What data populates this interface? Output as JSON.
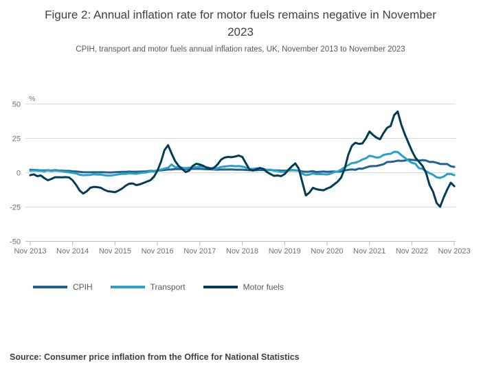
{
  "header": {
    "title": "Figure 2: Annual inflation rate for motor fuels remains negative in November 2023",
    "subtitle": "CPIH, transport and motor fuels annual inflation rates, UK, November 2013 to November 2023"
  },
  "chart_data": {
    "type": "line",
    "title": "Figure 2: Annual inflation rate for motor fuels remains negative in November 2023",
    "subtitle": "CPIH, transport and motor fuels annual inflation rates, UK, November 2013 to November 2023",
    "unit_label": "%",
    "x_frequency": "monthly",
    "x_start": "Nov 2013",
    "x_end": "Nov 2023",
    "x_tick_labels": [
      "Nov 2013",
      "Nov 2014",
      "Nov 2015",
      "Nov 2016",
      "Nov 2017",
      "Nov 2018",
      "Nov 2019",
      "Nov 2020",
      "Nov 2021",
      "Nov 2022",
      "Nov 2023"
    ],
    "y_ticks": [
      50,
      25,
      0,
      -25,
      -50
    ],
    "ylim": [
      -50,
      50
    ],
    "grid": "horizontal",
    "legend_position": "bottom-left",
    "colors": {
      "grid": "#d9d9d9",
      "axis": "#b7bcbf",
      "tick_text": "#707071"
    },
    "series": [
      {
        "name": "CPIH",
        "color": "#206095",
        "values": [
          2.1,
          2.0,
          1.8,
          1.7,
          1.6,
          1.8,
          1.5,
          1.9,
          1.6,
          1.5,
          1.3,
          1.3,
          1.0,
          0.9,
          0.6,
          0.4,
          0.3,
          0.3,
          0.4,
          0.3,
          0.4,
          0.3,
          0.2,
          0.2,
          0.4,
          0.5,
          0.6,
          0.6,
          0.8,
          0.7,
          0.7,
          0.8,
          0.9,
          1.0,
          1.3,
          1.2,
          1.5,
          1.7,
          2.0,
          2.3,
          2.3,
          2.6,
          2.7,
          2.6,
          2.6,
          2.7,
          2.8,
          2.8,
          2.8,
          2.7,
          2.5,
          2.5,
          2.3,
          2.2,
          2.3,
          2.3,
          2.3,
          2.4,
          2.2,
          2.2,
          2.2,
          2.0,
          1.8,
          1.8,
          1.8,
          2.0,
          1.9,
          1.9,
          2.0,
          1.7,
          1.7,
          1.5,
          1.5,
          1.4,
          1.8,
          1.7,
          1.5,
          0.9,
          0.7,
          0.8,
          1.1,
          0.5,
          0.7,
          0.9,
          0.6,
          0.8,
          0.9,
          0.7,
          1.0,
          1.6,
          2.1,
          2.4,
          2.1,
          3.0,
          2.9,
          3.8,
          4.6,
          4.8,
          4.9,
          5.5,
          6.2,
          7.8,
          7.9,
          8.2,
          8.8,
          8.6,
          8.8,
          9.6,
          9.3,
          9.2,
          8.8,
          9.2,
          8.9,
          7.8,
          7.9,
          7.3,
          6.4,
          6.3,
          6.3,
          4.7,
          4.2
        ]
      },
      {
        "name": "Transport",
        "color": "#27A0CC",
        "values": [
          1.5,
          1.6,
          1.4,
          1.3,
          1.0,
          1.7,
          1.2,
          1.5,
          1.3,
          1.0,
          0.6,
          0.3,
          -0.2,
          -0.5,
          -1.5,
          -1.8,
          -1.7,
          -1.6,
          -1.2,
          -1.4,
          -1.4,
          -1.8,
          -2.1,
          -2.0,
          -1.6,
          -1.2,
          -0.8,
          -0.9,
          -0.4,
          -0.6,
          -0.8,
          -0.3,
          0.0,
          0.2,
          1.0,
          0.9,
          1.7,
          2.3,
          3.1,
          3.6,
          6.0,
          4.0,
          4.2,
          3.6,
          3.3,
          3.7,
          4.0,
          4.0,
          4.5,
          4.4,
          4.0,
          3.3,
          2.7,
          3.3,
          4.2,
          4.5,
          4.8,
          5.0,
          4.7,
          4.8,
          4.5,
          3.7,
          2.6,
          2.8,
          3.1,
          3.3,
          2.7,
          2.1,
          2.2,
          1.4,
          1.2,
          0.6,
          0.8,
          1.4,
          2.0,
          1.8,
          1.2,
          -0.8,
          -1.7,
          -1.4,
          -0.5,
          -1.0,
          -1.0,
          -1.1,
          -1.3,
          -0.7,
          0.4,
          0.9,
          2.3,
          4.0,
          5.5,
          7.0,
          7.3,
          8.2,
          9.6,
          10.5,
          12.3,
          11.8,
          11.0,
          11.3,
          13.0,
          13.5,
          13.8,
          15.2,
          15.1,
          12.8,
          10.9,
          8.9,
          7.2,
          6.5,
          3.3,
          2.8,
          1.0,
          -0.3,
          -1.5,
          -3.3,
          -3.8,
          -2.8,
          -1.0,
          -0.9,
          -1.8
        ]
      },
      {
        "name": "Motor fuels",
        "color": "#003C57",
        "values": [
          -1.8,
          -1.2,
          -2.5,
          -2.0,
          -4.0,
          -5.5,
          -4.5,
          -3.3,
          -3.3,
          -3.4,
          -3.2,
          -3.5,
          -5.5,
          -9.0,
          -13.0,
          -15.2,
          -13.5,
          -11.0,
          -10.3,
          -10.5,
          -11.0,
          -12.5,
          -13.5,
          -13.8,
          -14.2,
          -13.0,
          -11.5,
          -9.5,
          -8.0,
          -7.8,
          -9.0,
          -8.5,
          -7.5,
          -6.5,
          -5.5,
          -3.0,
          1.5,
          8.0,
          16.5,
          20.0,
          14.0,
          8.5,
          5.0,
          2.7,
          0.5,
          1.5,
          5.0,
          6.5,
          6.0,
          5.0,
          3.5,
          3.0,
          3.5,
          6.0,
          9.5,
          11.0,
          11.5,
          11.3,
          11.8,
          12.5,
          11.5,
          7.0,
          2.5,
          1.5,
          2.5,
          3.5,
          2.7,
          0.5,
          -1.0,
          -2.3,
          -2.0,
          -2.5,
          -1.0,
          2.0,
          4.5,
          6.8,
          3.0,
          -7.0,
          -16.5,
          -14.5,
          -11.0,
          -12.0,
          -12.5,
          -12.8,
          -11.5,
          -10.5,
          -8.5,
          -6.5,
          -3.5,
          3.0,
          13.0,
          19.5,
          21.8,
          21.0,
          21.3,
          25.0,
          30.0,
          27.5,
          25.5,
          24.4,
          29.0,
          32.7,
          34.0,
          42.0,
          44.5,
          35.0,
          28.0,
          22.0,
          16.0,
          11.0,
          8.0,
          5.0,
          0.0,
          -8.9,
          -13.8,
          -22.0,
          -24.8,
          -18.0,
          -12.3,
          -7.3,
          -9.8
        ]
      }
    ]
  },
  "source": {
    "text": "Source: Consumer price inflation from the Office for National Statistics"
  }
}
